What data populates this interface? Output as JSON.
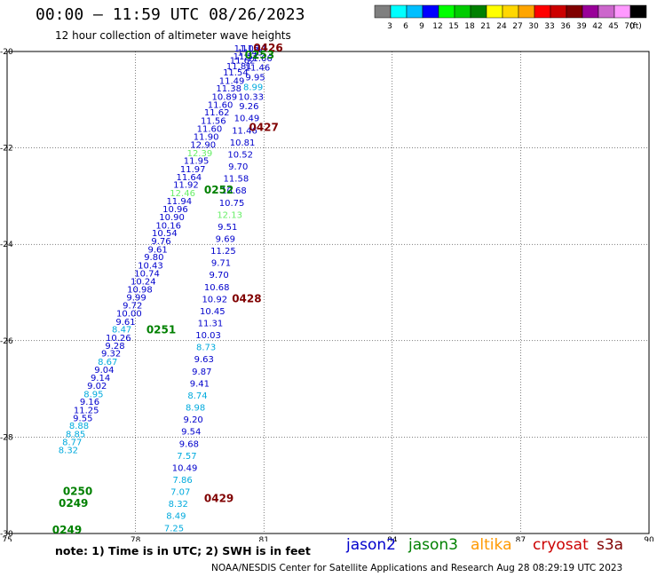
{
  "header": {
    "title": "00:00 – 11:59 UTC 08/26/2023",
    "subtitle": "12 hour collection of altimeter wave heights"
  },
  "legend": {
    "unit_label": "(ft)",
    "bins": [
      {
        "label": "3",
        "color": "#7f7f7f"
      },
      {
        "label": "6",
        "color": "#00ffff"
      },
      {
        "label": "9",
        "color": "#00bfff"
      },
      {
        "label": "12",
        "color": "#0000ff"
      },
      {
        "label": "15",
        "color": "#00ff00"
      },
      {
        "label": "18",
        "color": "#00cc00"
      },
      {
        "label": "21",
        "color": "#008000"
      },
      {
        "label": "24",
        "color": "#ffff00"
      },
      {
        "label": "27",
        "color": "#ffd700"
      },
      {
        "label": "30",
        "color": "#ffa500"
      },
      {
        "label": "33",
        "color": "#ff0000"
      },
      {
        "label": "36",
        "color": "#cc0000"
      },
      {
        "label": "39",
        "color": "#800000"
      },
      {
        "label": "42",
        "color": "#990099"
      },
      {
        "label": "45",
        "color": "#cc66cc"
      },
      {
        "label": "70",
        "color": "#ff99ff"
      },
      {
        "label": "",
        "color": "#000000"
      }
    ]
  },
  "footer": {
    "note": "note:  1) Time is in UTC; 2) SWH is in feet",
    "credit": "NOAA/NESDIS Center for Satellite Applications and Research    Aug 28 08:29:19 UTC 2023",
    "satellites": [
      {
        "name": "jason2",
        "color": "#0000cc"
      },
      {
        "name": "jason3",
        "color": "#008000"
      },
      {
        "name": "altika",
        "color": "#ff9900"
      },
      {
        "name": "cryosat",
        "color": "#cc0000"
      },
      {
        "name": "s3a",
        "color": "#800000"
      }
    ]
  },
  "chart_data": {
    "type": "scatter",
    "title": "00:00 – 11:59 UTC 08/26/2023",
    "xlabel": "",
    "ylabel": "",
    "xlim": [
      75,
      90
    ],
    "ylim": [
      -30,
      -20
    ],
    "x_ticks": [
      "75",
      "78",
      "81",
      "84",
      "87",
      "90"
    ],
    "y_ticks": [
      "-20",
      "-22",
      "-24",
      "-26",
      "-28",
      "-30"
    ],
    "grid": true,
    "series": [
      {
        "name": "track-west",
        "points": [
          {
            "x": 80.78,
            "y": -20.0,
            "v": "11.41",
            "c": "#0000cc"
          },
          {
            "x": 80.68,
            "y": -20.08,
            "v": "11.43",
            "c": "#0000cc"
          },
          {
            "x": 80.58,
            "y": -20.17,
            "v": "11.57",
            "c": "#0000cc"
          },
          {
            "x": 80.5,
            "y": -20.25,
            "v": "11.62",
            "c": "#0000cc"
          },
          {
            "x": 80.42,
            "y": -20.37,
            "v": "11.81",
            "c": "#0000cc"
          },
          {
            "x": 80.34,
            "y": -20.5,
            "v": "11.54",
            "c": "#0000cc"
          },
          {
            "x": 80.25,
            "y": -20.67,
            "v": "11.49",
            "c": "#0000cc"
          },
          {
            "x": 80.18,
            "y": -20.83,
            "v": "11.38",
            "c": "#0000cc"
          },
          {
            "x": 80.08,
            "y": -21.0,
            "v": "10.89",
            "c": "#0000cc"
          },
          {
            "x": 79.98,
            "y": -21.17,
            "v": "11.60",
            "c": "#0000cc"
          },
          {
            "x": 79.9,
            "y": -21.33,
            "v": "11.62",
            "c": "#0000cc"
          },
          {
            "x": 79.82,
            "y": -21.5,
            "v": "11.56",
            "c": "#0000cc"
          },
          {
            "x": 79.73,
            "y": -21.67,
            "v": "11.60",
            "c": "#0000cc"
          },
          {
            "x": 79.65,
            "y": -21.83,
            "v": "11.90",
            "c": "#0000cc"
          },
          {
            "x": 79.58,
            "y": -22.0,
            "v": "12.90",
            "c": "#0000cc"
          },
          {
            "x": 79.5,
            "y": -22.17,
            "v": "12.39",
            "c": "#66ee66"
          },
          {
            "x": 79.42,
            "y": -22.33,
            "v": "11.95",
            "c": "#0000cc"
          },
          {
            "x": 79.34,
            "y": -22.5,
            "v": "11.97",
            "c": "#0000cc"
          },
          {
            "x": 79.25,
            "y": -22.67,
            "v": "11.64",
            "c": "#0000cc"
          },
          {
            "x": 79.18,
            "y": -22.83,
            "v": "11.92",
            "c": "#0000cc"
          },
          {
            "x": 79.1,
            "y": -23.0,
            "v": "12.46",
            "c": "#66ee66"
          },
          {
            "x": 79.02,
            "y": -23.17,
            "v": "11.94",
            "c": "#0000cc"
          },
          {
            "x": 78.93,
            "y": -23.33,
            "v": "10.96",
            "c": "#0000cc"
          },
          {
            "x": 78.85,
            "y": -23.5,
            "v": "10.90",
            "c": "#0000cc"
          },
          {
            "x": 78.77,
            "y": -23.67,
            "v": "10.16",
            "c": "#0000cc"
          },
          {
            "x": 78.68,
            "y": -23.83,
            "v": "10.54",
            "c": "#0000cc"
          },
          {
            "x": 78.6,
            "y": -24.0,
            "v": "9.76",
            "c": "#0000cc"
          },
          {
            "x": 78.52,
            "y": -24.17,
            "v": "9.61",
            "c": "#0000cc"
          },
          {
            "x": 78.43,
            "y": -24.33,
            "v": "9.80",
            "c": "#0000cc"
          },
          {
            "x": 78.35,
            "y": -24.5,
            "v": "10.43",
            "c": "#0000cc"
          },
          {
            "x": 78.27,
            "y": -24.67,
            "v": "10.74",
            "c": "#0000cc"
          },
          {
            "x": 78.18,
            "y": -24.83,
            "v": "10.24",
            "c": "#0000cc"
          },
          {
            "x": 78.1,
            "y": -25.0,
            "v": "10.98",
            "c": "#0000cc"
          },
          {
            "x": 78.02,
            "y": -25.17,
            "v": "9.99",
            "c": "#0000cc"
          },
          {
            "x": 77.93,
            "y": -25.33,
            "v": "9.72",
            "c": "#0000cc"
          },
          {
            "x": 77.85,
            "y": -25.5,
            "v": "10.00",
            "c": "#0000cc"
          },
          {
            "x": 77.77,
            "y": -25.67,
            "v": "9.61",
            "c": "#0000cc"
          },
          {
            "x": 77.68,
            "y": -25.83,
            "v": "8.47",
            "c": "#00aadd"
          },
          {
            "x": 77.6,
            "y": -26.0,
            "v": "10.26",
            "c": "#0000cc"
          },
          {
            "x": 77.52,
            "y": -26.17,
            "v": "9.28",
            "c": "#0000cc"
          },
          {
            "x": 77.43,
            "y": -26.33,
            "v": "9.32",
            "c": "#0000cc"
          },
          {
            "x": 77.35,
            "y": -26.5,
            "v": "8.67",
            "c": "#00aadd"
          },
          {
            "x": 77.27,
            "y": -26.67,
            "v": "9.04",
            "c": "#0000cc"
          },
          {
            "x": 77.18,
            "y": -26.83,
            "v": "9.14",
            "c": "#0000cc"
          },
          {
            "x": 77.1,
            "y": -27.0,
            "v": "9.02",
            "c": "#0000cc"
          },
          {
            "x": 77.02,
            "y": -27.17,
            "v": "8.95",
            "c": "#00aadd"
          },
          {
            "x": 76.93,
            "y": -27.33,
            "v": "9.16",
            "c": "#0000cc"
          },
          {
            "x": 76.85,
            "y": -27.5,
            "v": "11.25",
            "c": "#0000cc"
          },
          {
            "x": 76.77,
            "y": -27.67,
            "v": "9.55",
            "c": "#0000cc"
          },
          {
            "x": 76.68,
            "y": -27.83,
            "v": "8.88",
            "c": "#00aadd"
          },
          {
            "x": 76.6,
            "y": -28.0,
            "v": "8.85",
            "c": "#00aadd"
          },
          {
            "x": 76.52,
            "y": -28.17,
            "v": "8.77",
            "c": "#00aadd"
          },
          {
            "x": 76.43,
            "y": -28.33,
            "v": "8.32",
            "c": "#00aadd"
          }
        ]
      },
      {
        "name": "track-east",
        "points": [
          {
            "x": 80.6,
            "y": -20.0,
            "v": "11.05",
            "c": "#0000cc"
          },
          {
            "x": 80.9,
            "y": -20.2,
            "v": "11.66",
            "c": "#0000cc"
          },
          {
            "x": 80.85,
            "y": -20.4,
            "v": "11.46",
            "c": "#0000cc"
          },
          {
            "x": 80.8,
            "y": -20.6,
            "v": "9.95",
            "c": "#0000cc"
          },
          {
            "x": 80.75,
            "y": -20.8,
            "v": "8.99",
            "c": "#00aadd"
          },
          {
            "x": 80.7,
            "y": -21.0,
            "v": "10.33",
            "c": "#0000cc"
          },
          {
            "x": 80.65,
            "y": -21.2,
            "v": "9.26",
            "c": "#0000cc"
          },
          {
            "x": 80.6,
            "y": -21.45,
            "v": "10.49",
            "c": "#0000cc"
          },
          {
            "x": 80.55,
            "y": -21.7,
            "v": "11.46",
            "c": "#0000cc"
          },
          {
            "x": 80.5,
            "y": -21.95,
            "v": "10.81",
            "c": "#0000cc"
          },
          {
            "x": 80.45,
            "y": -22.2,
            "v": "10.52",
            "c": "#0000cc"
          },
          {
            "x": 80.4,
            "y": -22.45,
            "v": "9.70",
            "c": "#0000cc"
          },
          {
            "x": 80.35,
            "y": -22.7,
            "v": "11.58",
            "c": "#0000cc"
          },
          {
            "x": 80.3,
            "y": -22.95,
            "v": "10.68",
            "c": "#0000cc"
          },
          {
            "x": 80.25,
            "y": -23.2,
            "v": "10.75",
            "c": "#0000cc"
          },
          {
            "x": 80.2,
            "y": -23.45,
            "v": "12.13",
            "c": "#66ee66"
          },
          {
            "x": 80.15,
            "y": -23.7,
            "v": "9.51",
            "c": "#0000cc"
          },
          {
            "x": 80.1,
            "y": -23.95,
            "v": "9.69",
            "c": "#0000cc"
          },
          {
            "x": 80.05,
            "y": -24.2,
            "v": "11.25",
            "c": "#0000cc"
          },
          {
            "x": 80.0,
            "y": -24.45,
            "v": "9.71",
            "c": "#0000cc"
          },
          {
            "x": 79.95,
            "y": -24.7,
            "v": "9.70",
            "c": "#0000cc"
          },
          {
            "x": 79.9,
            "y": -24.95,
            "v": "10.68",
            "c": "#0000cc"
          },
          {
            "x": 79.85,
            "y": -25.2,
            "v": "10.92",
            "c": "#0000cc"
          },
          {
            "x": 79.8,
            "y": -25.45,
            "v": "10.45",
            "c": "#0000cc"
          },
          {
            "x": 79.75,
            "y": -25.7,
            "v": "11.31",
            "c": "#0000cc"
          },
          {
            "x": 79.7,
            "y": -25.95,
            "v": "10.03",
            "c": "#0000cc"
          },
          {
            "x": 79.65,
            "y": -26.2,
            "v": "8.73",
            "c": "#00aadd"
          },
          {
            "x": 79.6,
            "y": -26.45,
            "v": "9.63",
            "c": "#0000cc"
          },
          {
            "x": 79.55,
            "y": -26.7,
            "v": "9.87",
            "c": "#0000cc"
          },
          {
            "x": 79.5,
            "y": -26.95,
            "v": "9.41",
            "c": "#0000cc"
          },
          {
            "x": 79.45,
            "y": -27.2,
            "v": "8.74",
            "c": "#00aadd"
          },
          {
            "x": 79.4,
            "y": -27.45,
            "v": "8.98",
            "c": "#00aadd"
          },
          {
            "x": 79.35,
            "y": -27.7,
            "v": "9.20",
            "c": "#0000cc"
          },
          {
            "x": 79.3,
            "y": -27.95,
            "v": "9.54",
            "c": "#0000cc"
          },
          {
            "x": 79.25,
            "y": -28.2,
            "v": "9.68",
            "c": "#0000cc"
          },
          {
            "x": 79.2,
            "y": -28.45,
            "v": "7.57",
            "c": "#00aadd"
          },
          {
            "x": 79.15,
            "y": -28.7,
            "v": "10.49",
            "c": "#0000cc"
          },
          {
            "x": 79.1,
            "y": -28.95,
            "v": "7.86",
            "c": "#00aadd"
          },
          {
            "x": 79.05,
            "y": -29.2,
            "v": "7.07",
            "c": "#00aadd"
          },
          {
            "x": 79.0,
            "y": -29.45,
            "v": "8.32",
            "c": "#00aadd"
          },
          {
            "x": 78.95,
            "y": -29.7,
            "v": "8.49",
            "c": "#00aadd"
          },
          {
            "x": 78.9,
            "y": -29.95,
            "v": "7.25",
            "c": "#00aadd"
          }
        ]
      }
    ],
    "time_labels": [
      {
        "x": 81.1,
        "y": -20.0,
        "label": "0426",
        "color": "#800000"
      },
      {
        "x": 80.9,
        "y": -20.15,
        "label": "0253",
        "color": "#008000"
      },
      {
        "x": 81.0,
        "y": -21.65,
        "label": "0427",
        "color": "#800000"
      },
      {
        "x": 79.95,
        "y": -22.95,
        "label": "0252",
        "color": "#008000"
      },
      {
        "x": 80.6,
        "y": -25.2,
        "label": "0428",
        "color": "#800000"
      },
      {
        "x": 78.6,
        "y": -25.85,
        "label": "0251",
        "color": "#008000"
      },
      {
        "x": 79.95,
        "y": -29.35,
        "label": "0429",
        "color": "#800000"
      },
      {
        "x": 76.65,
        "y": -29.2,
        "label": "0250",
        "color": "#008000"
      },
      {
        "x": 76.55,
        "y": -29.45,
        "label": "0249",
        "color": "#008000"
      },
      {
        "x": 76.4,
        "y": -30.0,
        "label": "0249",
        "color": "#008000"
      }
    ]
  }
}
